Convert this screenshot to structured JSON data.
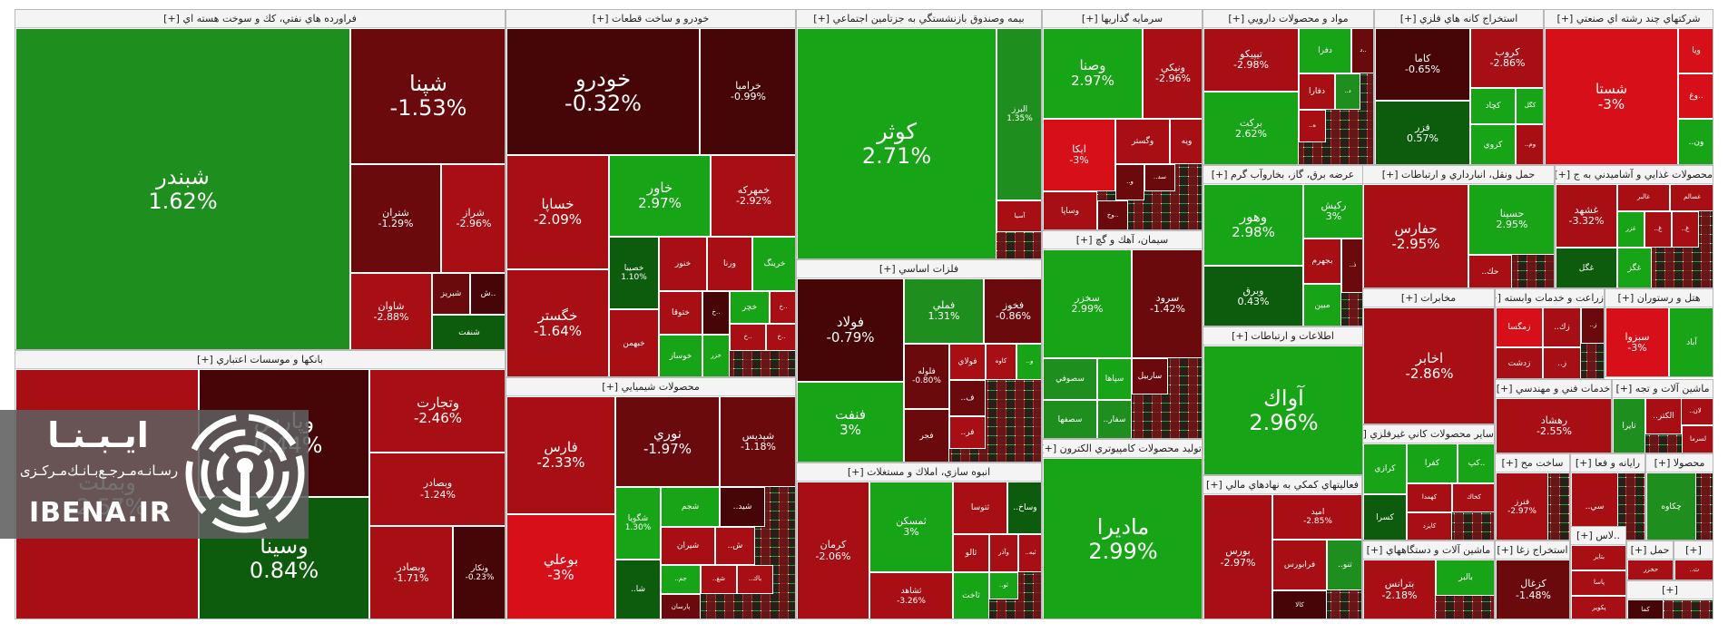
{
  "chart_data": {
    "type": "treemap",
    "title": "",
    "colors": {
      "up_strong": "#17a517",
      "up_mid": "#1e8f1e",
      "up_dark": "#0d5c0d",
      "down_strong": "#d60f18",
      "down_mid": "#a80f14",
      "down_dark": "#6b0a0c",
      "down_deep": "#460507"
    },
    "sectors": [
      {
        "name": "فراورده هاي نفتي، كك و سوخت هسته اي [+]",
        "stocks": [
          {
            "symbol": "شبندر",
            "change": "1.62%"
          },
          {
            "symbol": "شپنا",
            "change": "-1.53%"
          },
          {
            "symbol": "شتران",
            "change": "-1.29%"
          },
          {
            "symbol": "شراز",
            "change": "-2.96%"
          },
          {
            "symbol": "شاوان",
            "change": "-2.88%"
          },
          {
            "symbol": "شبريز",
            "change": ""
          },
          {
            "symbol": "ش..",
            "change": ""
          },
          {
            "symbol": "شنفت",
            "change": ""
          }
        ]
      },
      {
        "name": "خودرو و ساخت قطعات [+]",
        "stocks": [
          {
            "symbol": "خودرو",
            "change": "-0.32%"
          },
          {
            "symbol": "خراميا",
            "change": "-0.99%"
          },
          {
            "symbol": "خساپا",
            "change": "-2.09%"
          },
          {
            "symbol": "خاور",
            "change": "2.97%"
          },
          {
            "symbol": "خمهركه",
            "change": "-2.92%"
          },
          {
            "symbol": "خگستر",
            "change": "-1.64%"
          },
          {
            "symbol": "خصيبا",
            "change": "1.10%"
          },
          {
            "symbol": "خنور",
            "change": ""
          },
          {
            "symbol": "ورنا",
            "change": ""
          },
          {
            "symbol": "خرينگ",
            "change": ""
          },
          {
            "symbol": "خبهمن",
            "change": ""
          },
          {
            "symbol": "ختوقا",
            "change": ""
          },
          {
            "symbol": "خ..",
            "change": ""
          },
          {
            "symbol": "خچر",
            "change": ""
          },
          {
            "symbol": "خ..",
            "change": ""
          },
          {
            "symbol": "خوساز",
            "change": ""
          },
          {
            "symbol": "خزر",
            "change": ""
          },
          {
            "symbol": "خ..",
            "change": ""
          },
          {
            "symbol": "خ..",
            "change": ""
          }
        ]
      },
      {
        "name": "بيمه وصندوق بازنشستگي به جزتامين اجتماعي [+]",
        "stocks": [
          {
            "symbol": "كوثر",
            "change": "2.71%"
          },
          {
            "symbol": "البرز",
            "change": "1.35%"
          },
          {
            "symbol": "آسيا",
            "change": ""
          }
        ]
      },
      {
        "name": "سرمايه گذاريها [+]",
        "stocks": [
          {
            "symbol": "وصنا",
            "change": "2.97%"
          },
          {
            "symbol": "ونيكي",
            "change": "-2.96%"
          },
          {
            "symbol": "ايكا",
            "change": "-3%"
          },
          {
            "symbol": "وگستر",
            "change": ""
          },
          {
            "symbol": "ويه",
            "change": ""
          },
          {
            "symbol": "..و",
            "change": ""
          },
          {
            "symbol": "..سد",
            "change": ""
          },
          {
            "symbol": "وساپا",
            "change": ""
          },
          {
            "symbol": "وخ..",
            "change": ""
          }
        ]
      },
      {
        "name": "مواد و محصولات دارويي [+]",
        "stocks": [
          {
            "symbol": "تيپيكو",
            "change": "-2.98%"
          },
          {
            "symbol": "دفرا",
            "change": ""
          },
          {
            "symbol": "د..",
            "change": ""
          },
          {
            "symbol": "دفارا",
            "change": ""
          },
          {
            "symbol": "..د",
            "change": ""
          },
          {
            "symbol": "بركت",
            "change": "2.62%"
          },
          {
            "symbol": "..ه",
            "change": ""
          }
        ]
      },
      {
        "name": "استخراج كانه هاي فلزي [+]",
        "stocks": [
          {
            "symbol": "كاما",
            "change": "-0.65%"
          },
          {
            "symbol": "كروب",
            "change": "-2.86%"
          },
          {
            "symbol": "كچاد",
            "change": ""
          },
          {
            "symbol": "كگل",
            "change": ""
          },
          {
            "symbol": "فزر",
            "change": "0.57%"
          },
          {
            "symbol": "كروي",
            "change": ""
          },
          {
            "symbol": "..وم",
            "change": ""
          }
        ]
      },
      {
        "name": "شركتهاي چند رشته اي صنعتي [+]",
        "stocks": [
          {
            "symbol": "شستا",
            "change": "-3%"
          },
          {
            "symbol": "ويا",
            "change": ""
          },
          {
            "symbol": "وغ..",
            "change": ""
          },
          {
            "symbol": "..ون",
            "change": ""
          }
        ]
      },
      {
        "name": "عرضه برق، گاز، بخاروآب گرم [+]",
        "stocks": [
          {
            "symbol": "وهور",
            "change": "2.98%"
          },
          {
            "symbol": "ركيش",
            "change": "3%"
          },
          {
            "symbol": "وبرق",
            "change": "0.43%"
          },
          {
            "symbol": "بجهرم",
            "change": ""
          },
          {
            "symbol": "..ذ",
            "change": ""
          },
          {
            "symbol": "مبين",
            "change": ""
          }
        ]
      },
      {
        "name": "حمل ونقل، انبارداري و ارتباطات [+]",
        "stocks": [
          {
            "symbol": "حفارس",
            "change": "-2.95%"
          },
          {
            "symbol": "حسينا",
            "change": "2.95%"
          },
          {
            "symbol": "..حك",
            "change": ""
          }
        ]
      },
      {
        "name": "محصولات غذايي و آشاميدني به ج [+]",
        "stocks": [
          {
            "symbol": "غشهد",
            "change": "-3.32%"
          },
          {
            "symbol": "غالبر",
            "change": ""
          },
          {
            "symbol": "غسالم",
            "change": ""
          },
          {
            "symbol": "غزر",
            "change": ""
          },
          {
            "symbol": "..غ",
            "change": ""
          },
          {
            "symbol": "..غ",
            "change": ""
          },
          {
            "symbol": "غگل",
            "change": ""
          },
          {
            "symbol": "غگز",
            "change": ""
          }
        ]
      },
      {
        "name": "بانكها و موسسات اعتباري [+]",
        "stocks": [
          {
            "symbol": "وبملت",
            "change": "-2.57%"
          },
          {
            "symbol": "وپارس",
            "change": "-0.44%"
          },
          {
            "symbol": "وتجارت",
            "change": "-2.46%"
          },
          {
            "symbol": "وبصادر",
            "change": "-1.24%"
          },
          {
            "symbol": "وسينا",
            "change": "0.84%"
          },
          {
            "symbol": "وبصادر",
            "change": "-1.71%"
          },
          {
            "symbol": "ونكار",
            "change": "-0.23%"
          }
        ]
      },
      {
        "name": "محصولات شيميايي [+]",
        "stocks": [
          {
            "symbol": "فارس",
            "change": "-2.33%"
          },
          {
            "symbol": "نوري",
            "change": "-1.97%"
          },
          {
            "symbol": "شپديس",
            "change": "-1.18%"
          },
          {
            "symbol": "بوعلي",
            "change": "-3%"
          },
          {
            "symbol": "شگويا",
            "change": "1.30%"
          },
          {
            "symbol": "شجم",
            "change": ""
          },
          {
            "symbol": "..شيد",
            "change": ""
          },
          {
            "symbol": "شيران",
            "change": ""
          },
          {
            "symbol": "..ش",
            "change": ""
          },
          {
            "symbol": "..شا",
            "change": ""
          },
          {
            "symbol": "..جم",
            "change": ""
          },
          {
            "symbol": "..شغ",
            "change": ""
          },
          {
            "symbol": "پارسان",
            "change": ""
          },
          {
            "symbol": "..باك",
            "change": ""
          }
        ]
      },
      {
        "name": "فلزات اساسي [+]",
        "stocks": [
          {
            "symbol": "فولاد",
            "change": "-0.79%"
          },
          {
            "symbol": "فملي",
            "change": "1.31%"
          },
          {
            "symbol": "فخوز",
            "change": "-0.86%"
          },
          {
            "symbol": "فنفت",
            "change": "3%"
          },
          {
            "symbol": "فلوله",
            "change": "-0.80%"
          },
          {
            "symbol": "فولاي",
            "change": ""
          },
          {
            "symbol": "كاوه",
            "change": ""
          },
          {
            "symbol": "..و",
            "change": ""
          },
          {
            "symbol": "..ف",
            "change": ""
          },
          {
            "symbol": "..فر",
            "change": ""
          },
          {
            "symbol": "فجر",
            "change": ""
          }
        ]
      },
      {
        "name": "انبوه سازي، املاك و مستغلات [+]",
        "stocks": [
          {
            "symbol": "كرمان",
            "change": "-2.06%"
          },
          {
            "symbol": "ثمسكن",
            "change": "3%"
          },
          {
            "symbol": "ثتوسا",
            "change": ""
          },
          {
            "symbol": "..وساخ",
            "change": ""
          },
          {
            "symbol": "ثالو",
            "change": ""
          },
          {
            "symbol": "وآذر",
            "change": ""
          },
          {
            "symbol": "..ثبه",
            "change": ""
          },
          {
            "symbol": "ثاخت",
            "change": ""
          },
          {
            "symbol": "..ثو",
            "change": ""
          },
          {
            "symbol": "ثشاهد",
            "change": "-3.26%"
          }
        ]
      },
      {
        "name": "سيمان، آهك و گچ [+]",
        "stocks": [
          {
            "symbol": "سخزر",
            "change": "2.99%"
          },
          {
            "symbol": "سرود",
            "change": "-1.42%"
          },
          {
            "symbol": "سصوفي",
            "change": ""
          },
          {
            "symbol": "سپاها",
            "change": ""
          },
          {
            "symbol": "..سفار",
            "change": ""
          },
          {
            "symbol": "سصفها",
            "change": ""
          },
          {
            "symbol": "ساربيل",
            "change": ""
          }
        ]
      },
      {
        "name": "اطلاعات و ارتباطات [+]",
        "stocks": [
          {
            "symbol": "آواك",
            "change": "2.96%"
          }
        ]
      },
      {
        "name": "مخابرات [+]",
        "stocks": [
          {
            "symbol": "اخابر",
            "change": "-2.86%"
          }
        ]
      },
      {
        "name": "زراعت و خدمات وابسته [+]",
        "stocks": [
          {
            "symbol": "زمگسا",
            "change": ""
          },
          {
            "symbol": "..زك",
            "change": ""
          },
          {
            "symbol": "..ز",
            "change": ""
          },
          {
            "symbol": "..ز",
            "change": ""
          },
          {
            "symbol": "زدشت",
            "change": ""
          }
        ]
      },
      {
        "name": "هتل و رستوران [+]",
        "stocks": [
          {
            "symbol": "سبزوا",
            "change": "-3%"
          },
          {
            "symbol": "آباد",
            "change": ""
          }
        ]
      },
      {
        "name": "توليد محصولات كامپيوتري الكترون [+]",
        "stocks": [
          {
            "symbol": "ماديرا",
            "change": "2.99%"
          }
        ]
      },
      {
        "name": "خدمات فني و مهندسي [+]",
        "stocks": [
          {
            "symbol": "رهشاد",
            "change": "-2.55%"
          }
        ]
      },
      {
        "name": "ماشين آلات و تجه [+]",
        "stocks": [
          {
            "symbol": "..لان",
            "change": ""
          },
          {
            "symbol": "تايرا",
            "change": ""
          },
          {
            "symbol": "..الكتر",
            "change": ""
          },
          {
            "symbol": "لسرما",
            "change": ""
          }
        ]
      },
      {
        "name": "ساير محصولات كاني غيرفلزي [+]",
        "stocks": [
          {
            "symbol": "كرازي",
            "change": ""
          },
          {
            "symbol": "كفرا",
            "change": ""
          },
          {
            "symbol": "كپ..",
            "change": ""
          },
          {
            "symbol": "كهمدا",
            "change": ""
          },
          {
            "symbol": "كخاك",
            "change": ""
          },
          {
            "symbol": "كسرا",
            "change": ""
          },
          {
            "symbol": "كايزد",
            "change": ""
          }
        ]
      },
      {
        "name": "فعاليتهاي كمكي به نهادهاي مالي [+]",
        "stocks": [
          {
            "symbol": "بورس",
            "change": "-2.97%"
          },
          {
            "symbol": "اميد",
            "change": "-2.85%"
          },
          {
            "symbol": "فرابورس",
            "change": ""
          },
          {
            "symbol": "..تنو",
            "change": ""
          },
          {
            "symbol": "كالا",
            "change": ""
          }
        ]
      },
      {
        "name": "ماشين آلات و دستگاههاي [+]",
        "stocks": [
          {
            "symbol": "بترانس",
            "change": "-2.18%"
          },
          {
            "symbol": "بالبر",
            "change": ""
          }
        ]
      },
      {
        "name": "ساخت مح [+]",
        "stocks": [
          {
            "symbol": "فنرز",
            "change": "-2.97%"
          }
        ]
      },
      {
        "name": "رايانه و فعا [+]",
        "stocks": [
          {
            "symbol": "..سي",
            "change": ""
          }
        ]
      },
      {
        "name": "محصولا [+]",
        "stocks": [
          {
            "symbol": "چكاوه",
            "change": ""
          }
        ]
      },
      {
        "name": "استخراج زغا [+]",
        "stocks": [
          {
            "symbol": "كزغال",
            "change": "-1.48%"
          }
        ]
      },
      {
        "name": "..لاس [+]",
        "stocks": [
          {
            "symbol": "بتاير",
            "change": ""
          },
          {
            "symbol": "پاسا",
            "change": ""
          },
          {
            "symbol": "پكوير",
            "change": ""
          }
        ]
      },
      {
        "name": "حمل [+]",
        "stocks": [
          {
            "symbol": "حخزر",
            "change": ""
          }
        ]
      },
      {
        "name": "[+]",
        "stocks": [
          {
            "symbol": "..ث",
            "change": ""
          }
        ]
      },
      {
        "name": "[+]",
        "stocks": [
          {
            "symbol": "كما",
            "change": ""
          }
        ]
      }
    ]
  },
  "watermark": {
    "title": "ايـبـنـا",
    "tagline": "رسـانـه‌مـرجـع‌بـانـك‌مـركـزی",
    "domain": "IBENA.IR"
  }
}
